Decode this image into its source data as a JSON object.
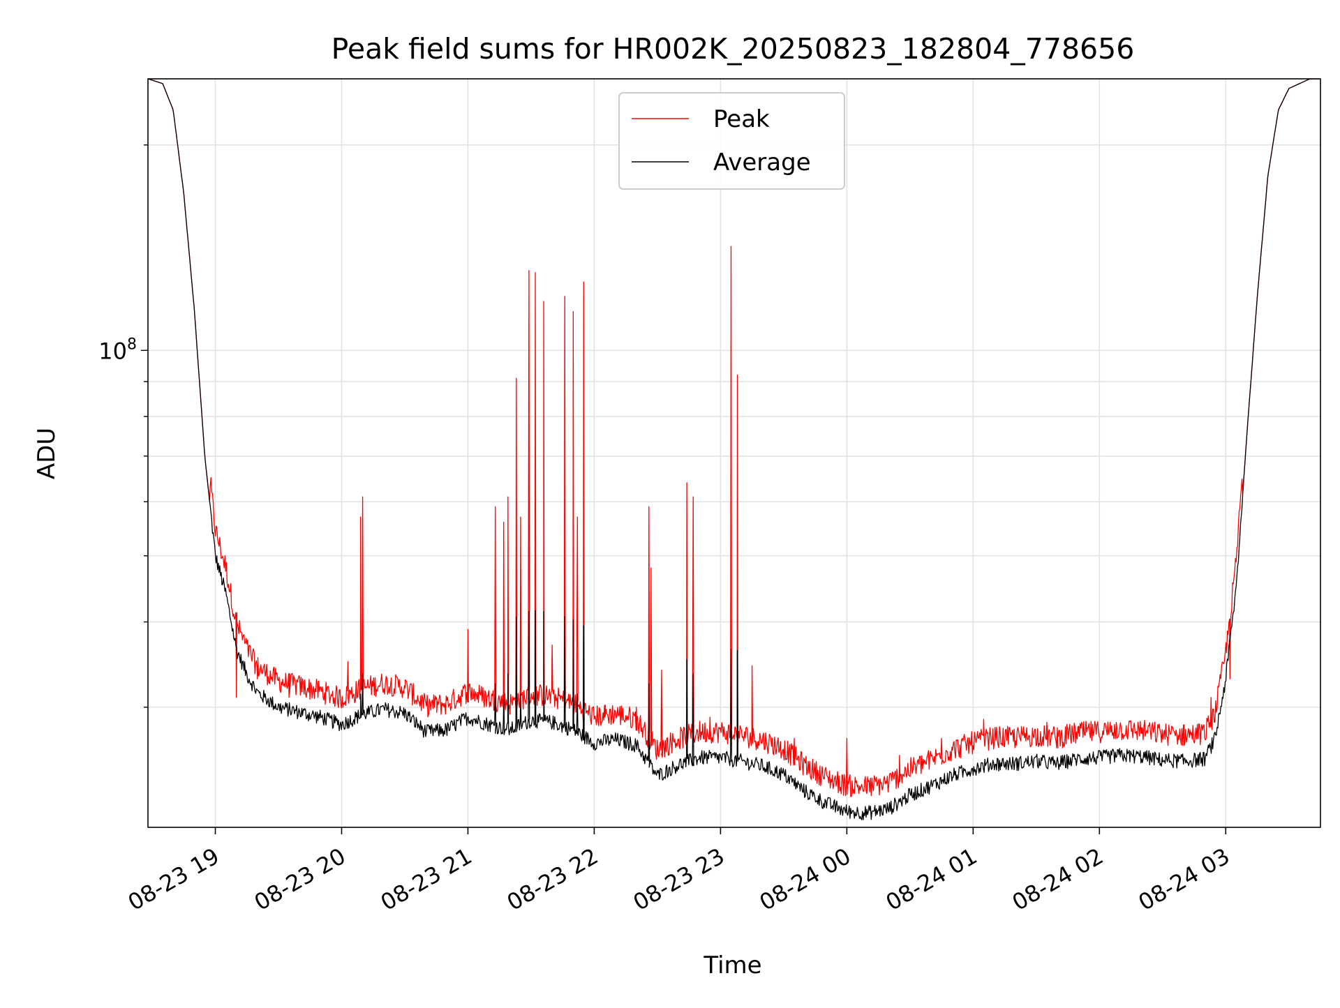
{
  "chart_data": {
    "type": "line",
    "title": "Peak field sums for HR002K_20250823_182804_778656",
    "xlabel": "Time",
    "ylabel": "ADU",
    "yscale": "log",
    "ylim": [
      20000000,
      250000000
    ],
    "xlim": [
      "2025-08-23 18:28",
      "2025-08-24 03:45"
    ],
    "x_ticks": [
      {
        "value": "2025-08-23 19:00",
        "label": "08-23 19"
      },
      {
        "value": "2025-08-23 20:00",
        "label": "08-23 20"
      },
      {
        "value": "2025-08-23 21:00",
        "label": "08-23 21"
      },
      {
        "value": "2025-08-23 22:00",
        "label": "08-23 22"
      },
      {
        "value": "2025-08-23 23:00",
        "label": "08-23 23"
      },
      {
        "value": "2025-08-24 00:00",
        "label": "08-24 00"
      },
      {
        "value": "2025-08-24 01:00",
        "label": "08-24 01"
      },
      {
        "value": "2025-08-24 02:00",
        "label": "08-24 02"
      },
      {
        "value": "2025-08-24 03:00",
        "label": "08-24 03"
      }
    ],
    "y_ticks": [
      {
        "value": 100000000,
        "base": "10",
        "exp": "8"
      }
    ],
    "y_minor_ticks": [
      30000000,
      40000000,
      50000000,
      60000000,
      70000000,
      80000000,
      90000000,
      200000000
    ],
    "grid": true,
    "legend": {
      "position": "top-center",
      "entries": [
        "Peak",
        "Average"
      ]
    },
    "series": [
      {
        "name": "Average",
        "color": "#000000",
        "points": [
          [
            "2025-08-23 18:28",
            250000000
          ],
          [
            "2025-08-23 18:35",
            246000000
          ],
          [
            "2025-08-23 18:40",
            225000000
          ],
          [
            "2025-08-23 18:45",
            170000000
          ],
          [
            "2025-08-23 18:50",
            115000000
          ],
          [
            "2025-08-23 18:55",
            70000000
          ],
          [
            "2025-08-23 19:00",
            50000000
          ],
          [
            "2025-08-23 19:05",
            44000000
          ],
          [
            "2025-08-23 19:10",
            36500000
          ],
          [
            "2025-08-23 19:15",
            33500000
          ],
          [
            "2025-08-23 19:20",
            31500000
          ],
          [
            "2025-08-23 19:30",
            30000000
          ],
          [
            "2025-08-23 19:40",
            29500000
          ],
          [
            "2025-08-23 19:50",
            29000000
          ],
          [
            "2025-08-23 20:00",
            28300000
          ],
          [
            "2025-08-23 20:10",
            29300000
          ],
          [
            "2025-08-23 20:20",
            29800000
          ],
          [
            "2025-08-23 20:30",
            29400000
          ],
          [
            "2025-08-23 20:40",
            27600000
          ],
          [
            "2025-08-23 20:50",
            27800000
          ],
          [
            "2025-08-23 21:00",
            29000000
          ],
          [
            "2025-08-23 21:10",
            28300000
          ],
          [
            "2025-08-23 21:20",
            27800000
          ],
          [
            "2025-08-23 21:30",
            28700000
          ],
          [
            "2025-08-23 21:40",
            28500000
          ],
          [
            "2025-08-23 21:50",
            27800000
          ],
          [
            "2025-08-23 22:00",
            26600000
          ],
          [
            "2025-08-23 22:10",
            26900000
          ],
          [
            "2025-08-23 22:20",
            26400000
          ],
          [
            "2025-08-23 22:30",
            23800000
          ],
          [
            "2025-08-23 22:40",
            24700000
          ],
          [
            "2025-08-23 22:50",
            25300000
          ],
          [
            "2025-08-23 23:00",
            25300000
          ],
          [
            "2025-08-23 23:10",
            25000000
          ],
          [
            "2025-08-23 23:20",
            24600000
          ],
          [
            "2025-08-23 23:30",
            23900000
          ],
          [
            "2025-08-23 23:40",
            22600000
          ],
          [
            "2025-08-23 23:50",
            21700000
          ],
          [
            "2025-08-24 00:00",
            21100000
          ],
          [
            "2025-08-24 00:10",
            21000000
          ],
          [
            "2025-08-24 00:20",
            21300000
          ],
          [
            "2025-08-24 00:30",
            22300000
          ],
          [
            "2025-08-24 00:40",
            23000000
          ],
          [
            "2025-08-24 00:50",
            23800000
          ],
          [
            "2025-08-24 01:00",
            24400000
          ],
          [
            "2025-08-24 01:10",
            24800000
          ],
          [
            "2025-08-24 01:20",
            24800000
          ],
          [
            "2025-08-24 01:30",
            25000000
          ],
          [
            "2025-08-24 01:40",
            24800000
          ],
          [
            "2025-08-24 01:50",
            25200000
          ],
          [
            "2025-08-24 02:00",
            25300000
          ],
          [
            "2025-08-24 02:10",
            25500000
          ],
          [
            "2025-08-24 02:20",
            25400000
          ],
          [
            "2025-08-24 02:30",
            25100000
          ],
          [
            "2025-08-24 02:40",
            25000000
          ],
          [
            "2025-08-24 02:50",
            25200000
          ],
          [
            "2025-08-24 02:55",
            27000000
          ],
          [
            "2025-08-24 03:00",
            33000000
          ],
          [
            "2025-08-24 03:05",
            45000000
          ],
          [
            "2025-08-24 03:10",
            75000000
          ],
          [
            "2025-08-24 03:15",
            120000000
          ],
          [
            "2025-08-24 03:20",
            180000000
          ],
          [
            "2025-08-24 03:25",
            225000000
          ],
          [
            "2025-08-24 03:30",
            242000000
          ],
          [
            "2025-08-24 03:40",
            250000000
          ],
          [
            "2025-08-24 03:45",
            250000000
          ]
        ]
      },
      {
        "name": "Peak",
        "color": "#ff0000",
        "offset_ratio": 1.05,
        "spikes": [
          [
            "2025-08-23 19:10",
            31000000
          ],
          [
            "2025-08-23 19:20",
            33000000
          ],
          [
            "2025-08-23 19:35",
            31000000
          ],
          [
            "2025-08-23 20:03",
            35000000
          ],
          [
            "2025-08-23 20:09",
            57000000
          ],
          [
            "2025-08-23 20:10",
            61000000
          ],
          [
            "2025-08-23 20:30",
            32000000
          ],
          [
            "2025-08-23 20:45",
            31000000
          ],
          [
            "2025-08-23 21:00",
            39000000
          ],
          [
            "2025-08-23 21:05",
            30500000
          ],
          [
            "2025-08-23 21:13",
            59000000
          ],
          [
            "2025-08-23 21:17",
            56000000
          ],
          [
            "2025-08-23 21:19",
            61000000
          ],
          [
            "2025-08-23 21:23",
            91000000
          ],
          [
            "2025-08-23 21:25",
            57000000
          ],
          [
            "2025-08-23 21:29",
            131000000
          ],
          [
            "2025-08-23 21:32",
            130000000
          ],
          [
            "2025-08-23 21:36",
            118000000
          ],
          [
            "2025-08-23 21:40",
            37000000
          ],
          [
            "2025-08-23 21:46",
            120000000
          ],
          [
            "2025-08-23 21:50",
            114000000
          ],
          [
            "2025-08-23 21:52",
            57000000
          ],
          [
            "2025-08-23 21:55",
            126000000
          ],
          [
            "2025-08-23 22:05",
            29000000
          ],
          [
            "2025-08-23 22:20",
            30000000
          ],
          [
            "2025-08-23 22:26",
            59000000
          ],
          [
            "2025-08-23 22:27",
            48000000
          ],
          [
            "2025-08-23 22:32",
            34000000
          ],
          [
            "2025-08-23 22:44",
            64000000
          ],
          [
            "2025-08-23 22:47",
            61000000
          ],
          [
            "2025-08-23 22:55",
            29000000
          ],
          [
            "2025-08-23 23:05",
            142000000
          ],
          [
            "2025-08-23 23:08",
            92000000
          ],
          [
            "2025-08-23 23:15",
            34500000
          ],
          [
            "2025-08-23 23:35",
            27000000
          ],
          [
            "2025-08-24 00:00",
            27000000
          ],
          [
            "2025-08-24 00:25",
            25500000
          ],
          [
            "2025-08-24 00:45",
            27000000
          ],
          [
            "2025-08-24 01:05",
            28800000
          ],
          [
            "2025-08-24 01:18",
            27500000
          ],
          [
            "2025-08-24 01:35",
            28500000
          ],
          [
            "2025-08-24 01:40",
            28000000
          ],
          [
            "2025-08-24 01:50",
            27500000
          ],
          [
            "2025-08-24 02:08",
            28500000
          ],
          [
            "2025-08-24 02:20",
            28000000
          ],
          [
            "2025-08-24 02:40",
            27000000
          ],
          [
            "2025-08-24 02:53",
            31000000
          ],
          [
            "2025-08-24 03:02",
            33000000
          ]
        ]
      }
    ]
  }
}
